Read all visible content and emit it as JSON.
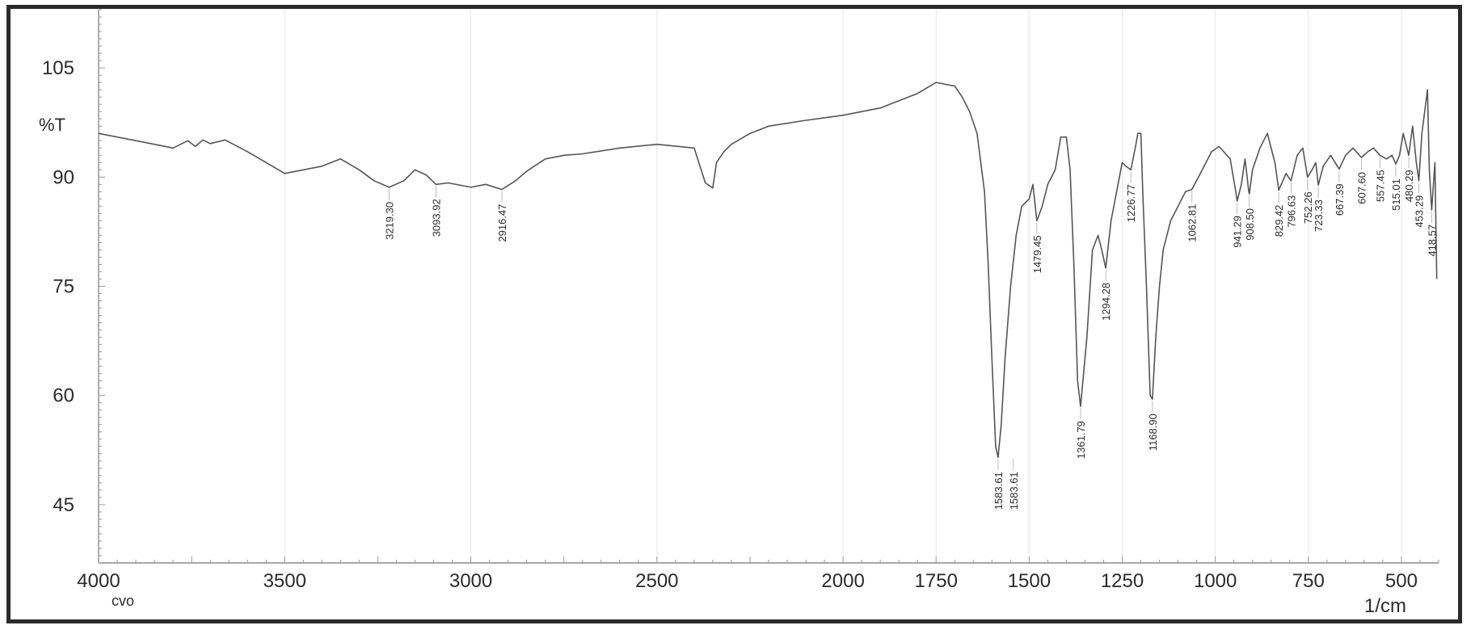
{
  "chart_data": {
    "type": "line",
    "ylabel": "%T",
    "xunit": "1/cm",
    "xfooter": "cvo",
    "xlim": [
      4000,
      400
    ],
    "ylim": [
      37,
      113
    ],
    "xticks": [
      4000,
      3500,
      3000,
      2500,
      2000,
      1750,
      1500,
      1250,
      1000,
      750,
      500
    ],
    "yticks": [
      105,
      90,
      75,
      60,
      45
    ],
    "grid": "faint vertical lines",
    "series": [
      {
        "color": "#555555",
        "x": [
          4000,
          3950,
          3900,
          3850,
          3800,
          3760,
          3740,
          3720,
          3700,
          3660,
          3600,
          3550,
          3500,
          3450,
          3400,
          3350,
          3300,
          3260,
          3219.3,
          3180,
          3150,
          3120,
          3093.92,
          3060,
          3000,
          2960,
          2916.47,
          2880,
          2850,
          2800,
          2750,
          2700,
          2600,
          2500,
          2400,
          2370,
          2350,
          2340,
          2320,
          2300,
          2250,
          2200,
          2100,
          2000,
          1900,
          1800,
          1750,
          1700,
          1680,
          1660,
          1640,
          1620,
          1610,
          1600,
          1590,
          1583.61,
          1575,
          1565,
          1550,
          1535,
          1520,
          1500,
          1490,
          1479.45,
          1465,
          1450,
          1430,
          1415,
          1400,
          1390,
          1380,
          1370,
          1361.79,
          1345,
          1330,
          1315,
          1305,
          1294.28,
          1280,
          1265,
          1250,
          1240,
          1226.77,
          1215,
          1208,
          1200,
          1195,
          1185,
          1175,
          1168.9,
          1160,
          1150,
          1140,
          1120,
          1100,
          1080,
          1062.81,
          1040,
          1010,
          990,
          960,
          945,
          941.29,
          930,
          920,
          910,
          908.5,
          900,
          880,
          860,
          840,
          829.42,
          810,
          796.63,
          780,
          765,
          752.26,
          740,
          730,
          723.33,
          710,
          690,
          667.39,
          650,
          630,
          607.6,
          590,
          575,
          557.45,
          540,
          525,
          515.01,
          505,
          495,
          480.29,
          470,
          460,
          453.29,
          445,
          430,
          425,
          418.57,
          410,
          405
        ],
        "y": [
          96,
          95.5,
          95,
          94.5,
          94,
          95,
          94.2,
          95.1,
          94.6,
          95.1,
          93.5,
          92,
          90.5,
          91,
          91.5,
          92.5,
          91,
          89.5,
          88.6,
          89.5,
          91,
          90.3,
          89,
          89.2,
          88.6,
          89,
          88.3,
          89.5,
          90.8,
          92.5,
          93,
          93.2,
          94,
          94.5,
          94,
          89.2,
          88.5,
          92,
          93.5,
          94.5,
          96,
          97,
          97.8,
          98.5,
          99.5,
          101.5,
          103,
          102.5,
          101,
          99,
          96,
          88,
          78,
          65,
          53,
          51.5,
          56,
          65,
          75,
          82,
          86,
          87,
          89,
          84,
          86,
          89,
          91,
          95.5,
          95.5,
          91,
          78,
          62,
          58.5,
          68,
          80,
          82,
          80,
          77.5,
          84,
          88,
          92,
          91.5,
          91,
          94,
          96,
          96,
          88,
          75,
          60,
          59.5,
          68,
          75,
          80,
          84,
          86,
          88,
          88.3,
          90.5,
          93.5,
          94.2,
          92.5,
          88,
          86.7,
          89,
          92.5,
          88,
          87.7,
          91,
          94,
          96,
          92,
          88.2,
          90.5,
          89.5,
          93,
          94,
          90,
          91,
          92,
          88.9,
          91.5,
          93,
          91.1,
          93,
          94,
          92.7,
          93.5,
          94,
          93,
          92.5,
          93,
          91.8,
          93,
          96,
          93,
          97,
          92,
          89.5,
          96,
          102,
          91,
          85.5,
          92,
          76
        ]
      }
    ],
    "peak_labels": [
      "3219.30",
      "3093.92",
      "2916.47",
      "1583.61",
      "1583.61",
      "1479.45",
      "1361.79",
      "1294.28",
      "1226.77",
      "1168.90",
      "1062.81",
      "941.29",
      "908.50",
      "829.42",
      "796.63",
      "752.26",
      "723.33",
      "667.39",
      "607.60",
      "557.45",
      "515.01",
      "480.29",
      "453.29",
      "418.57"
    ]
  }
}
